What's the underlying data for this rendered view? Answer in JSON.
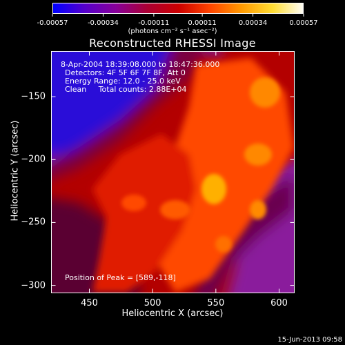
{
  "chart_data": {
    "type": "heatmap",
    "title": "Reconstructed RHESSI Image",
    "xlabel": "Heliocentric X (arcsec)",
    "ylabel": "Heliocentric Y (arcsec)",
    "xlim": [
      420,
      612
    ],
    "ylim": [
      -306,
      -114
    ],
    "xticks": [
      450,
      500,
      550,
      600
    ],
    "yticks": [
      -150,
      -200,
      -250,
      -300
    ],
    "colorbar": {
      "ticks": [
        "-0.00057",
        "-0.00034",
        "-0.00011",
        "0.00011",
        "0.00034",
        "0.00057"
      ],
      "tick_values": [
        -0.00057,
        -0.00034,
        -0.00011,
        0.00011,
        0.00034,
        0.00057
      ],
      "range": [
        -0.00057,
        0.00057
      ],
      "units": "(photons cm⁻² s⁻¹ asec⁻²)",
      "colors": [
        "#0000ff",
        "#5500cc",
        "#880099",
        "#aa0033",
        "#cc0000",
        "#ff4400",
        "#ff9900",
        "#ffdd33",
        "#ffffff"
      ]
    },
    "annotations": {
      "time_range": "8-Apr-2004 18:39:08.000 to 18:47:36.000",
      "detectors": "Detectors: 4F 5F 6F 7F 8F, Att 0",
      "energy_range": "Energy Range: 12.0 - 25.0 keV",
      "clean": "Clean     Total counts: 2.88E+04",
      "peak": "Position of Peak = [589,-118]"
    },
    "peak_position": [
      589,
      -118
    ]
  },
  "footer": {
    "timestamp": "15-Jun-2013 09:58"
  }
}
